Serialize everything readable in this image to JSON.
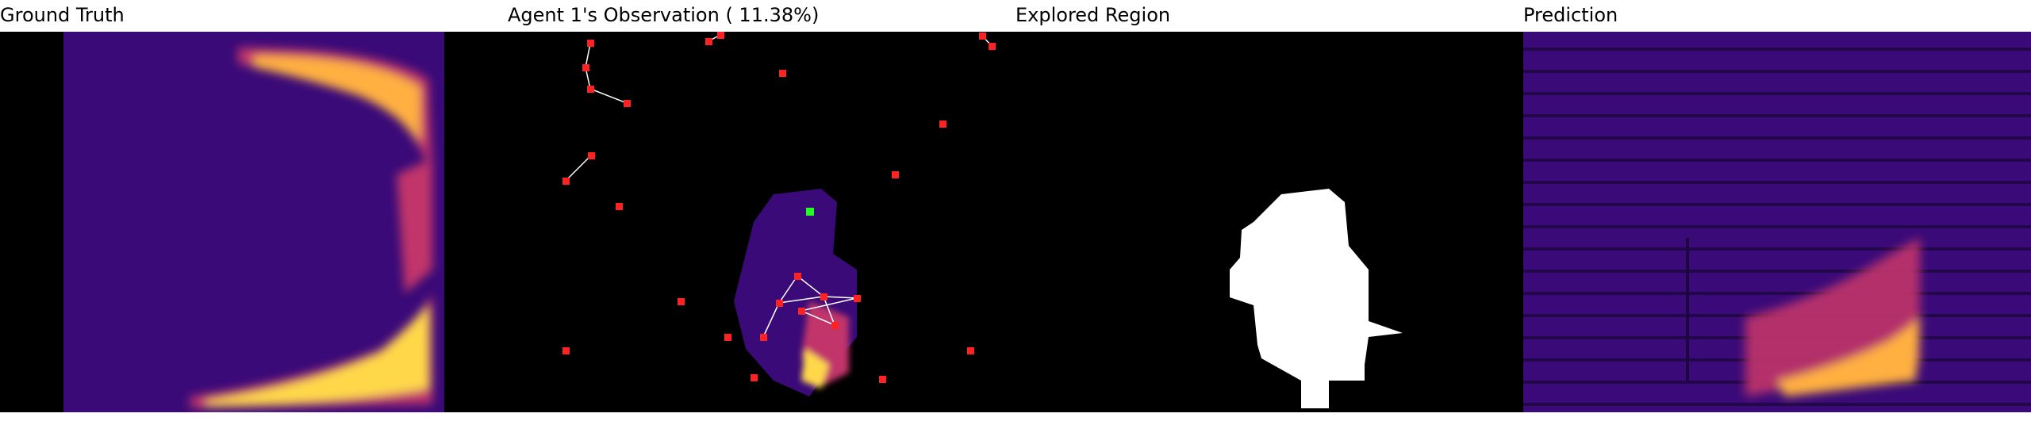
{
  "panels": [
    {
      "title": "Ground Truth"
    },
    {
      "title": "Agent 1's Observation ( 11.38%)"
    },
    {
      "title": "Explored Region"
    },
    {
      "title": "Prediction"
    }
  ],
  "colors": {
    "background": "#000000",
    "heat_low": "#3a0a78",
    "heat_mid": "#c1356a",
    "heat_high": "#ffd84a",
    "agent_marker": "#ff2222",
    "current_agent": "#22ff22",
    "explored": "#ffffff",
    "link_line": "#ffffff"
  }
}
